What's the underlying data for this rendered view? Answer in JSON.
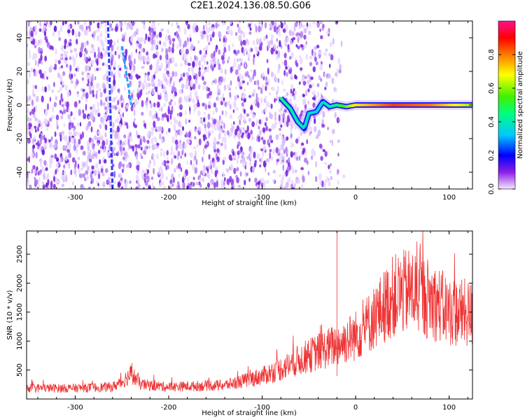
{
  "figure": {
    "title": "C2E1.2024.136.08.50.G06"
  },
  "chart_data": [
    {
      "type": "heatmap",
      "title": "",
      "xlabel": "Height of straight line (km)",
      "ylabel": "Frequency (Hz)",
      "xlim": [
        -352,
        125
      ],
      "ylim": [
        -50,
        50
      ],
      "xticks": [
        -300,
        -200,
        -100,
        0,
        100
      ],
      "yticks": [
        -40,
        -20,
        0,
        20,
        40
      ],
      "colorbar": {
        "label": "Normalized spectral amplitude",
        "range": [
          0,
          1
        ],
        "ticks": [
          "0.0",
          "0.2",
          "0.4",
          "0.6",
          "0.8"
        ],
        "colors": [
          "#f4e8ff",
          "#8c1fe6",
          "#0000ff",
          "#00c8ff",
          "#00ff80",
          "#40f000",
          "#ffff00",
          "#ff9000",
          "#ff0000",
          "#ff1090"
        ]
      },
      "noise_region_km": [
        -352,
        -35
      ],
      "signal_track": [
        {
          "x": -80,
          "y": 4
        },
        {
          "x": -70,
          "y": -2
        },
        {
          "x": -62,
          "y": -10
        },
        {
          "x": -55,
          "y": -14
        },
        {
          "x": -50,
          "y": -5
        },
        {
          "x": -42,
          "y": -4
        },
        {
          "x": -35,
          "y": 2
        },
        {
          "x": -28,
          "y": -1
        },
        {
          "x": -20,
          "y": 0
        },
        {
          "x": -10,
          "y": -1
        },
        {
          "x": 0,
          "y": 0
        },
        {
          "x": 60,
          "y": 0
        },
        {
          "x": 125,
          "y": 0
        }
      ],
      "track_amplitude": [
        {
          "x": -80,
          "a": 0.45
        },
        {
          "x": -60,
          "a": 0.4
        },
        {
          "x": -40,
          "a": 0.35
        },
        {
          "x": -20,
          "a": 0.45
        },
        {
          "x": 0,
          "a": 0.7
        },
        {
          "x": 40,
          "a": 0.85
        },
        {
          "x": 80,
          "a": 0.8
        },
        {
          "x": 125,
          "a": 0.6
        }
      ],
      "spurious_lines": [
        {
          "x": [
            -265,
            -260
          ],
          "y": [
            50,
            -50
          ]
        },
        {
          "x": [
            -250,
            -240
          ],
          "y": [
            35,
            0
          ]
        }
      ]
    },
    {
      "type": "line",
      "title": "",
      "xlabel": "Height of straight line (km)",
      "ylabel": "SNR (10 * v/v)",
      "xlim": [
        -352,
        125
      ],
      "ylim": [
        0,
        2900
      ],
      "xticks": [
        -300,
        -200,
        -100,
        0,
        100
      ],
      "yticks": [
        500,
        1000,
        1500,
        2000,
        2500
      ],
      "series": [
        {
          "color": "#ee3333",
          "baseline": [
            {
              "x": -352,
              "y": 180
            },
            {
              "x": -300,
              "y": 180
            },
            {
              "x": -260,
              "y": 200
            },
            {
              "x": -250,
              "y": 280
            },
            {
              "x": -240,
              "y": 420
            },
            {
              "x": -230,
              "y": 240
            },
            {
              "x": -200,
              "y": 200
            },
            {
              "x": -140,
              "y": 230
            },
            {
              "x": -120,
              "y": 300
            },
            {
              "x": -100,
              "y": 380
            },
            {
              "x": -80,
              "y": 500
            },
            {
              "x": -60,
              "y": 650
            },
            {
              "x": -40,
              "y": 780
            },
            {
              "x": -20,
              "y": 900
            },
            {
              "x": 0,
              "y": 1050
            },
            {
              "x": 20,
              "y": 1350
            },
            {
              "x": 40,
              "y": 1700
            },
            {
              "x": 60,
              "y": 1800
            },
            {
              "x": 80,
              "y": 1650
            },
            {
              "x": 100,
              "y": 1450
            },
            {
              "x": 125,
              "y": 1400
            }
          ],
          "spike": {
            "x": -20,
            "y": 2900
          }
        }
      ]
    }
  ]
}
